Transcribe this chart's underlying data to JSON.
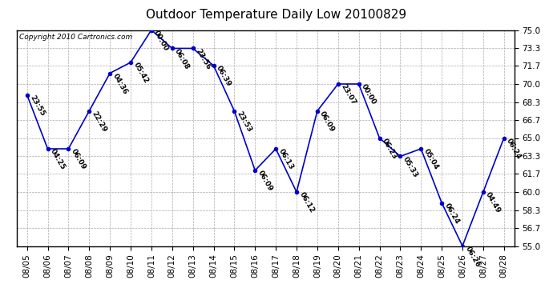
{
  "title": "Outdoor Temperature Daily Low 20100829",
  "copyright_text": "Copyright 2010 Cartronics.com",
  "dates": [
    "08/05",
    "08/06",
    "08/07",
    "08/08",
    "08/09",
    "08/10",
    "08/11",
    "08/12",
    "08/13",
    "08/14",
    "08/15",
    "08/16",
    "08/17",
    "08/18",
    "08/19",
    "08/20",
    "08/21",
    "08/22",
    "08/23",
    "08/24",
    "08/25",
    "08/26",
    "08/27",
    "08/28"
  ],
  "values": [
    69.0,
    64.0,
    64.0,
    67.5,
    71.0,
    72.0,
    75.0,
    73.3,
    73.3,
    71.7,
    67.5,
    62.0,
    64.0,
    60.0,
    67.5,
    70.0,
    70.0,
    65.0,
    63.3,
    64.0,
    59.0,
    55.0,
    60.0,
    65.0
  ],
  "labels": [
    "23:55",
    "04:25",
    "06:09",
    "22:29",
    "04:36",
    "05:42",
    "00:00",
    "06:08",
    "23:56",
    "06:39",
    "23:53",
    "06:09",
    "06:13",
    "06:12",
    "06:09",
    "23:07",
    "00:00",
    "06:23",
    "05:33",
    "05:04",
    "06:24",
    "06:26",
    "04:49",
    "06:24"
  ],
  "ylim": [
    55.0,
    75.0
  ],
  "yticks": [
    55.0,
    56.7,
    58.3,
    60.0,
    61.7,
    63.3,
    65.0,
    66.7,
    68.3,
    70.0,
    71.7,
    73.3,
    75.0
  ],
  "ytick_labels": [
    "55.0",
    "56.7",
    "58.3",
    "60.0",
    "61.7",
    "63.3",
    "65.0",
    "66.7",
    "68.3",
    "70.0",
    "71.7",
    "73.3",
    "75.0"
  ],
  "line_color": "#0000cc",
  "marker_color": "#0000cc",
  "bg_color": "#ffffff",
  "plot_bg_color": "#ffffff",
  "grid_color": "#aaaaaa",
  "title_fontsize": 11,
  "label_fontsize": 6.5,
  "tick_fontsize": 7.5,
  "copyright_fontsize": 6.5
}
